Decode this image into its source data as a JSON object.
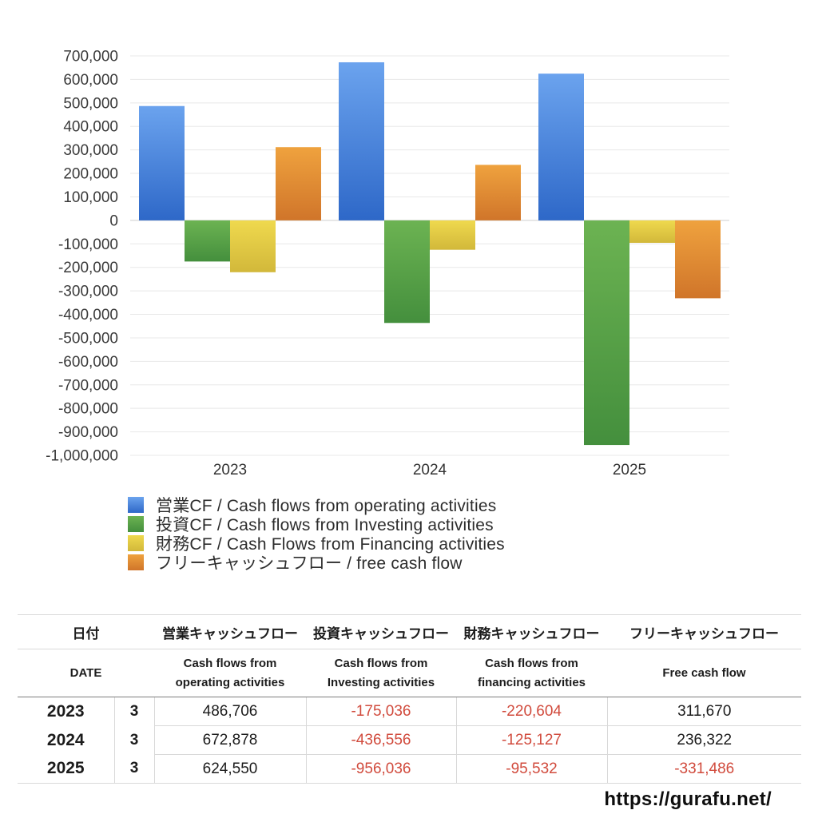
{
  "chart_data": {
    "type": "bar",
    "title": "",
    "categories": [
      "2023",
      "2024",
      "2025"
    ],
    "series": [
      {
        "name": "営業CF / Cash flows from operating activities",
        "values": [
          486706,
          672878,
          624550
        ],
        "color_top": "#6ba3ee",
        "color_bottom": "#2e68c8"
      },
      {
        "name": "投資CF / Cash flows from Investing activities",
        "values": [
          -175036,
          -436556,
          -956036
        ],
        "color_top": "#6cb352",
        "color_bottom": "#448f3d"
      },
      {
        "name": "財務CF / Cash Flows from Financing activities",
        "values": [
          -220604,
          -125127,
          -95532
        ],
        "color_top": "#efd94e",
        "color_bottom": "#d2b83a"
      },
      {
        "name": "フリーキャッシュフロー / free cash flow",
        "values": [
          311670,
          236322,
          -331486
        ],
        "color_top": "#efa23e",
        "color_bottom": "#d0752a"
      }
    ],
    "ylim": [
      -1000000,
      700000
    ],
    "ytick_step": 100000,
    "grid": true,
    "legend_position": "bottom-left",
    "grid_color": "#e8e8e8",
    "zero_line_color": "#cfcfcf",
    "tick_label_color": "#3a3a3a"
  },
  "table": {
    "negative_color": "#d14b3d",
    "header_jp": {
      "date": "日付",
      "operating": "営業キャッシュフロー",
      "investing": "投資キャッシュフロー",
      "financing": "財務キャッシュフロー",
      "fcf": "フリーキャッシュフロー"
    },
    "header_en": {
      "date": "DATE",
      "operating": "Cash flows from operating activities",
      "investing": "Cash flows from Investing activities",
      "financing": "Cash flows from financing activities",
      "fcf": "Free cash flow"
    },
    "rows": [
      {
        "year": "2023",
        "month": "3",
        "operating": "486,706",
        "investing": "-175,036",
        "financing": "-220,604",
        "fcf": "311,670"
      },
      {
        "year": "2024",
        "month": "3",
        "operating": "672,878",
        "investing": "-436,556",
        "financing": "-125,127",
        "fcf": "236,322"
      },
      {
        "year": "2025",
        "month": "3",
        "operating": "624,550",
        "investing": "-956,036",
        "financing": "-95,532",
        "fcf": "-331,486"
      }
    ]
  },
  "footer": {
    "url": "https://gurafu.net/"
  }
}
